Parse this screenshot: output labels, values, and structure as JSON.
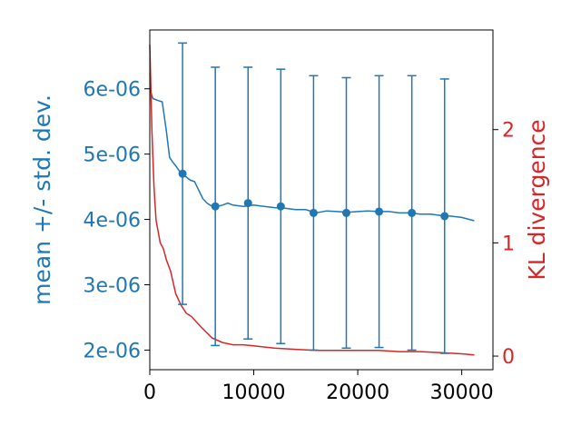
{
  "chart_data": {
    "type": "line",
    "title": "",
    "xlabel": "",
    "ylabel_left": "mean +/- std. dev.",
    "ylabel_right": "KL divergence",
    "colors": {
      "left": "#1f77b4",
      "right": "#d62728",
      "axis": "#000000"
    },
    "x_ticks": [
      {
        "value": 0,
        "label": "0"
      },
      {
        "value": 10000,
        "label": "10000"
      },
      {
        "value": 20000,
        "label": "20000"
      },
      {
        "value": 30000,
        "label": "30000"
      }
    ],
    "y_left_ticks": [
      {
        "value": 2e-06,
        "label": "2e-06"
      },
      {
        "value": 3e-06,
        "label": "3e-06"
      },
      {
        "value": 4e-06,
        "label": "4e-06"
      },
      {
        "value": 5e-06,
        "label": "5e-06"
      },
      {
        "value": 6e-06,
        "label": "6e-06"
      }
    ],
    "y_right_ticks": [
      {
        "value": 0,
        "label": "0"
      },
      {
        "value": 1,
        "label": "1"
      },
      {
        "value": 2,
        "label": "2"
      }
    ],
    "xlim": [
      0,
      33000
    ],
    "ylim_left": [
      1.7e-06,
      6.9e-06
    ],
    "ylim_right": [
      -0.12,
      2.88
    ],
    "series": [
      {
        "axis": "left",
        "kind": "line",
        "x": [
          0,
          300,
          800,
          1200,
          1600,
          1900,
          2200,
          2500,
          2800,
          3100,
          3500,
          3900,
          4300,
          4700,
          5100,
          5500,
          6000,
          6500,
          7000,
          7500,
          8000,
          9000,
          10000,
          11000,
          12000,
          13000,
          14000,
          15000,
          16000,
          17000,
          18000,
          19000,
          20000,
          21000,
          22000,
          23000,
          24000,
          25000,
          26000,
          27000,
          28000,
          29000,
          30000,
          31200
        ],
        "y": [
          6e-06,
          5.85e-06,
          5.82e-06,
          5.8e-06,
          5.35e-06,
          4.95e-06,
          4.88e-06,
          4.82e-06,
          4.75e-06,
          4.68e-06,
          4.65e-06,
          4.6e-06,
          4.58e-06,
          4.45e-06,
          4.32e-06,
          4.25e-06,
          4.2e-06,
          4.2e-06,
          4.22e-06,
          4.25e-06,
          4.22e-06,
          4.2e-06,
          4.22e-06,
          4.2e-06,
          4.18e-06,
          4.17e-06,
          4.15e-06,
          4.15e-06,
          4.1e-06,
          4.13e-06,
          4.12e-06,
          4.11e-06,
          4.12e-06,
          4.13e-06,
          4.12e-06,
          4.12e-06,
          4.1e-06,
          4.1e-06,
          4.08e-06,
          4.08e-06,
          4.06e-06,
          4.05e-06,
          4.03e-06,
          3.98e-06
        ]
      },
      {
        "axis": "left",
        "kind": "errorbar",
        "x": [
          3150,
          6300,
          9450,
          12600,
          15750,
          18900,
          22050,
          25200,
          28350
        ],
        "y": [
          4.7e-06,
          4.2e-06,
          4.25e-06,
          4.2e-06,
          4.1e-06,
          4.1e-06,
          4.12e-06,
          4.1e-06,
          4.05e-06
        ],
        "err": [
          2e-06,
          2.13e-06,
          2.08e-06,
          2.1e-06,
          2.1e-06,
          2.07e-06,
          2.08e-06,
          2.1e-06,
          2.1e-06
        ]
      },
      {
        "axis": "right",
        "kind": "line",
        "x": [
          0,
          100,
          200,
          400,
          600,
          800,
          1000,
          1300,
          1600,
          2000,
          2500,
          3000,
          3500,
          4000,
          5000,
          6000,
          7000,
          8000,
          9000,
          10000,
          12000,
          14000,
          16000,
          18000,
          20000,
          22000,
          24000,
          26000,
          28000,
          30000,
          31200
        ],
        "y": [
          2.75,
          2.4,
          2.0,
          1.5,
          1.2,
          1.1,
          1.0,
          0.95,
          0.85,
          0.75,
          0.55,
          0.45,
          0.38,
          0.35,
          0.25,
          0.16,
          0.12,
          0.1,
          0.1,
          0.09,
          0.07,
          0.06,
          0.05,
          0.05,
          0.05,
          0.05,
          0.04,
          0.04,
          0.03,
          0.02,
          0.01
        ]
      }
    ]
  }
}
